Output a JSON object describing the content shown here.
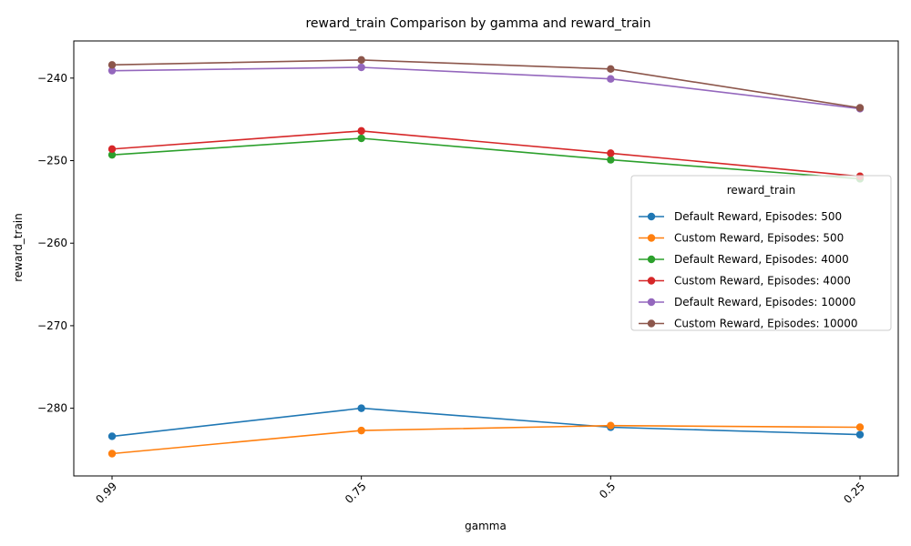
{
  "chart_data": {
    "type": "line",
    "title": "reward_train Comparison by gamma and reward_train",
    "xlabel": "gamma",
    "ylabel": "reward_train",
    "categories": [
      "0.99",
      "0.75",
      "0.5",
      "0.25"
    ],
    "ylim": [
      -288.2,
      -235.5
    ],
    "yticks": [
      -240,
      -250,
      -260,
      -270,
      -280
    ],
    "grid": false,
    "legend": {
      "title": "reward_train",
      "placement": "center-right"
    },
    "series": [
      {
        "name": "Default Reward, Episodes: 500",
        "color": "#1f77b4",
        "values": [
          -283.4,
          -280.0,
          -282.3,
          -283.2
        ]
      },
      {
        "name": "Custom Reward, Episodes: 500",
        "color": "#ff7f0e",
        "values": [
          -285.5,
          -282.7,
          -282.1,
          -282.3
        ]
      },
      {
        "name": "Default Reward, Episodes: 4000",
        "color": "#2ca02c",
        "values": [
          -249.3,
          -247.3,
          -249.9,
          -252.2
        ]
      },
      {
        "name": "Custom Reward, Episodes: 4000",
        "color": "#d62728",
        "values": [
          -248.6,
          -246.4,
          -249.1,
          -251.9
        ]
      },
      {
        "name": "Default Reward, Episodes: 10000",
        "color": "#9467bd",
        "values": [
          -239.1,
          -238.7,
          -240.1,
          -243.7
        ]
      },
      {
        "name": "Custom Reward, Episodes: 10000",
        "color": "#8c564b",
        "values": [
          -238.4,
          -237.8,
          -238.9,
          -243.6
        ]
      }
    ]
  }
}
